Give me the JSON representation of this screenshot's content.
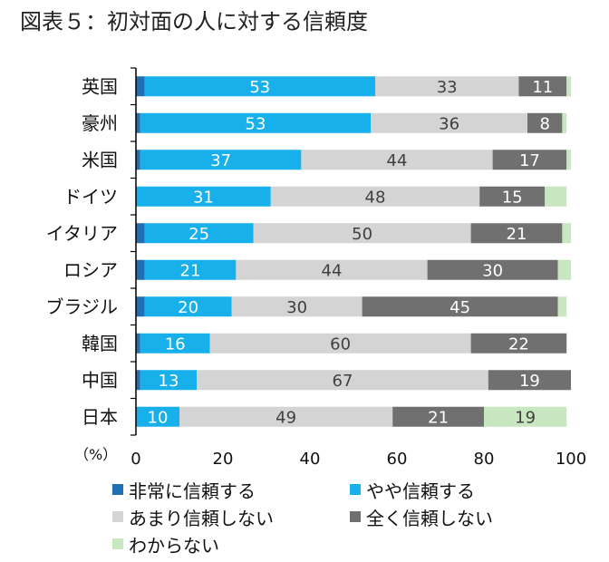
{
  "chart_data": {
    "type": "bar",
    "orientation": "horizontal",
    "stacked": true,
    "title": "図表５：初対面の人に対する信頼度",
    "unit_label": "（%）",
    "categories": [
      "英国",
      "豪州",
      "米国",
      "ドイツ",
      "イタリア",
      "ロシア",
      "ブラジル",
      "韓国",
      "中国",
      "日本"
    ],
    "xlim": [
      0,
      100
    ],
    "xticks": [
      "0",
      "20",
      "40",
      "60",
      "80",
      "100"
    ],
    "series": [
      {
        "name": "非常に信頼する",
        "color": "#1f6fb5",
        "label_color": "#ffffff",
        "show_labels": false,
        "values": [
          2,
          1,
          1,
          0,
          2,
          2,
          2,
          1,
          1,
          0
        ]
      },
      {
        "name": "やや信頼する",
        "color": "#17b0ea",
        "label_color": "#ffffff",
        "show_labels": true,
        "values": [
          53,
          53,
          37,
          31,
          25,
          21,
          20,
          16,
          13,
          10
        ]
      },
      {
        "name": "あまり信頼しない",
        "color": "#d4d4d4",
        "label_color": "#404040",
        "show_labels": true,
        "values": [
          33,
          36,
          44,
          48,
          50,
          44,
          30,
          60,
          67,
          49
        ]
      },
      {
        "name": "全く信頼しない",
        "color": "#707070",
        "label_color": "#ffffff",
        "show_labels": true,
        "values": [
          11,
          8,
          17,
          15,
          21,
          30,
          45,
          22,
          19,
          21
        ]
      },
      {
        "name": "わからない",
        "color": "#c8e6c0",
        "label_color": "#404040",
        "show_labels": true,
        "values": [
          1,
          1,
          1,
          5,
          2,
          3,
          2,
          0,
          0,
          19
        ]
      }
    ],
    "value_labels": [
      [
        "",
        "53",
        "33",
        "11",
        ""
      ],
      [
        "",
        "53",
        "36",
        "8",
        ""
      ],
      [
        "",
        "37",
        "44",
        "17",
        ""
      ],
      [
        "",
        "31",
        "48",
        "15",
        ""
      ],
      [
        "",
        "25",
        "50",
        "21",
        ""
      ],
      [
        "",
        "21",
        "44",
        "30",
        ""
      ],
      [
        "",
        "20",
        "30",
        "45",
        ""
      ],
      [
        "",
        "16",
        "60",
        "22",
        ""
      ],
      [
        "",
        "13",
        "67",
        "19",
        ""
      ],
      [
        "",
        "10",
        "49",
        "21",
        "19"
      ]
    ],
    "legend": [
      "非常に信頼する",
      "やや信頼する",
      "あまり信頼しない",
      "全く信頼しない",
      "わからない"
    ],
    "legend_position": "bottom"
  }
}
